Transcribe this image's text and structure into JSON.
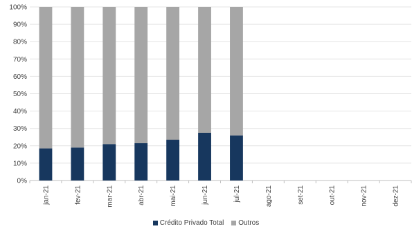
{
  "chart_data": {
    "type": "bar",
    "stacked": true,
    "categories": [
      "jan-21",
      "fev-21",
      "mar-21",
      "abr-21",
      "mai-21",
      "jun-21",
      "jul-21",
      "ago-21",
      "set-21",
      "out-21",
      "nov-21",
      "dez-21"
    ],
    "series": [
      {
        "name": "Crédito Privado Total",
        "color": "#17375e",
        "values": [
          18.5,
          19,
          21,
          21.5,
          23.5,
          27.5,
          26,
          null,
          null,
          null,
          null,
          null
        ]
      },
      {
        "name": "Outros",
        "color": "#a6a6a6",
        "values": [
          81.5,
          81,
          79,
          78.5,
          76.5,
          72.5,
          74,
          null,
          null,
          null,
          null,
          null
        ]
      }
    ],
    "yticks": [
      "0%",
      "10%",
      "20%",
      "30%",
      "40%",
      "50%",
      "60%",
      "70%",
      "80%",
      "90%",
      "100%"
    ],
    "ylim": [
      0,
      100
    ],
    "grid": true,
    "legend": "bottom"
  }
}
